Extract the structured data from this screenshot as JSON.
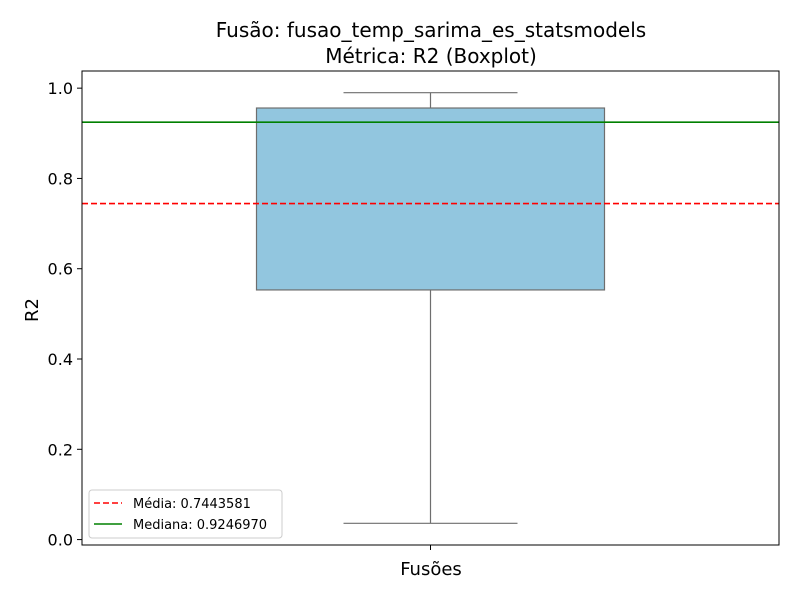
{
  "chart_data": {
    "type": "box",
    "title_line1": "Fusão: fusao_temp_sarima_es_statsmodels",
    "title_line2": "Métrica: R2 (Boxplot)",
    "xlabel": "Fusões",
    "ylabel": "R2",
    "categories": [
      ""
    ],
    "box": {
      "whisker_low": 0.036,
      "q1": 0.553,
      "median": 0.924697,
      "q3": 0.956,
      "whisker_high": 0.99
    },
    "ylim": [
      -0.012,
      1.038
    ],
    "yticks": [
      0.0,
      0.2,
      0.4,
      0.6,
      0.8,
      1.0
    ],
    "ytick_labels": [
      "0.0",
      "0.2",
      "0.4",
      "0.6",
      "0.8",
      "1.0"
    ],
    "reference_lines": [
      {
        "name": "Média: 0.7443581",
        "value": 0.7443581,
        "color": "#ff0000",
        "style": "dashed"
      },
      {
        "name": "Mediana: 0.9246970",
        "value": 0.924697,
        "color": "#008000",
        "style": "solid"
      }
    ],
    "box_color": "#92c6df",
    "box_edge_color": "#6e6e6e",
    "legend_position": "lower-left",
    "grid": false
  }
}
